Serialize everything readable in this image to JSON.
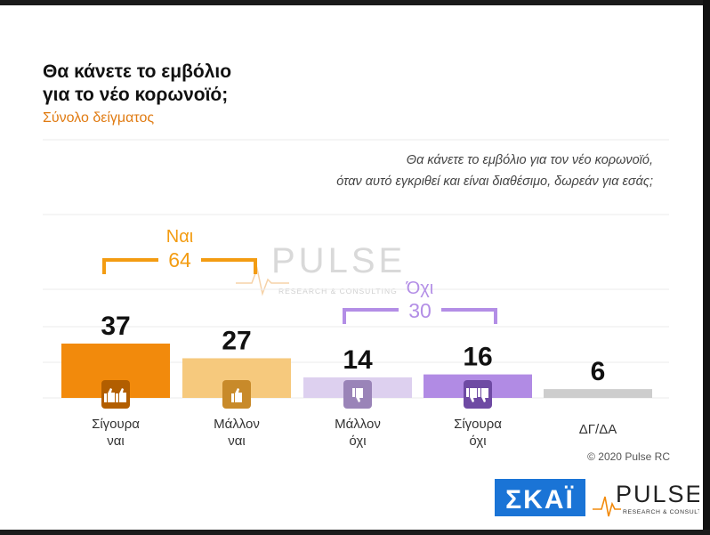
{
  "title_line1": "Θα κάνετε το εμβόλιο",
  "title_line2": "για το νέο κορωνοϊό;",
  "subtitle": "Σύνολο δείγματος",
  "question_line1": "Θα κάνετε το εμβόλιο για τον νέο κορωνοϊό,",
  "question_line2": "όταν αυτό εγκριθεί και είναι διαθέσιμο, δωρεάν για εσάς;",
  "copyright": "© 2020 Pulse RC",
  "logos": {
    "skai": "ΣΚΑΪ",
    "pulse": "PULSE",
    "pulse_sub": "RESEARCH & CONSULTING"
  },
  "colors": {
    "orange_dark": "#f28a0c",
    "orange_light": "#f6c97d",
    "purple_light": "#ddd0ef",
    "purple_dark": "#b18be4",
    "grey": "#cdcdcd",
    "bracket_orange": "#f39c12",
    "bracket_purple": "#b38ee6"
  },
  "chart_data": {
    "type": "bar",
    "categories": [
      {
        "line1": "Σίγουρα",
        "line2": "ναι"
      },
      {
        "line1": "Μάλλον",
        "line2": "ναι"
      },
      {
        "line1": "Μάλλον",
        "line2": "όχι"
      },
      {
        "line1": "Σίγουρα",
        "line2": "όχι"
      },
      {
        "line1": "ΔΓ/ΔΑ",
        "line2": ""
      }
    ],
    "values": [
      37,
      27,
      14,
      16,
      6
    ],
    "icons": [
      "double-thumbs-up-icon",
      "thumbs-up-icon",
      "thumbs-down-icon",
      "double-thumbs-down-icon",
      ""
    ],
    "ylim": [
      0,
      40
    ],
    "groups": [
      {
        "label": "Ναι",
        "value": 64,
        "from": 0,
        "to": 1
      },
      {
        "label": "Όχι",
        "value": 30,
        "from": 2,
        "to": 3
      }
    ]
  }
}
